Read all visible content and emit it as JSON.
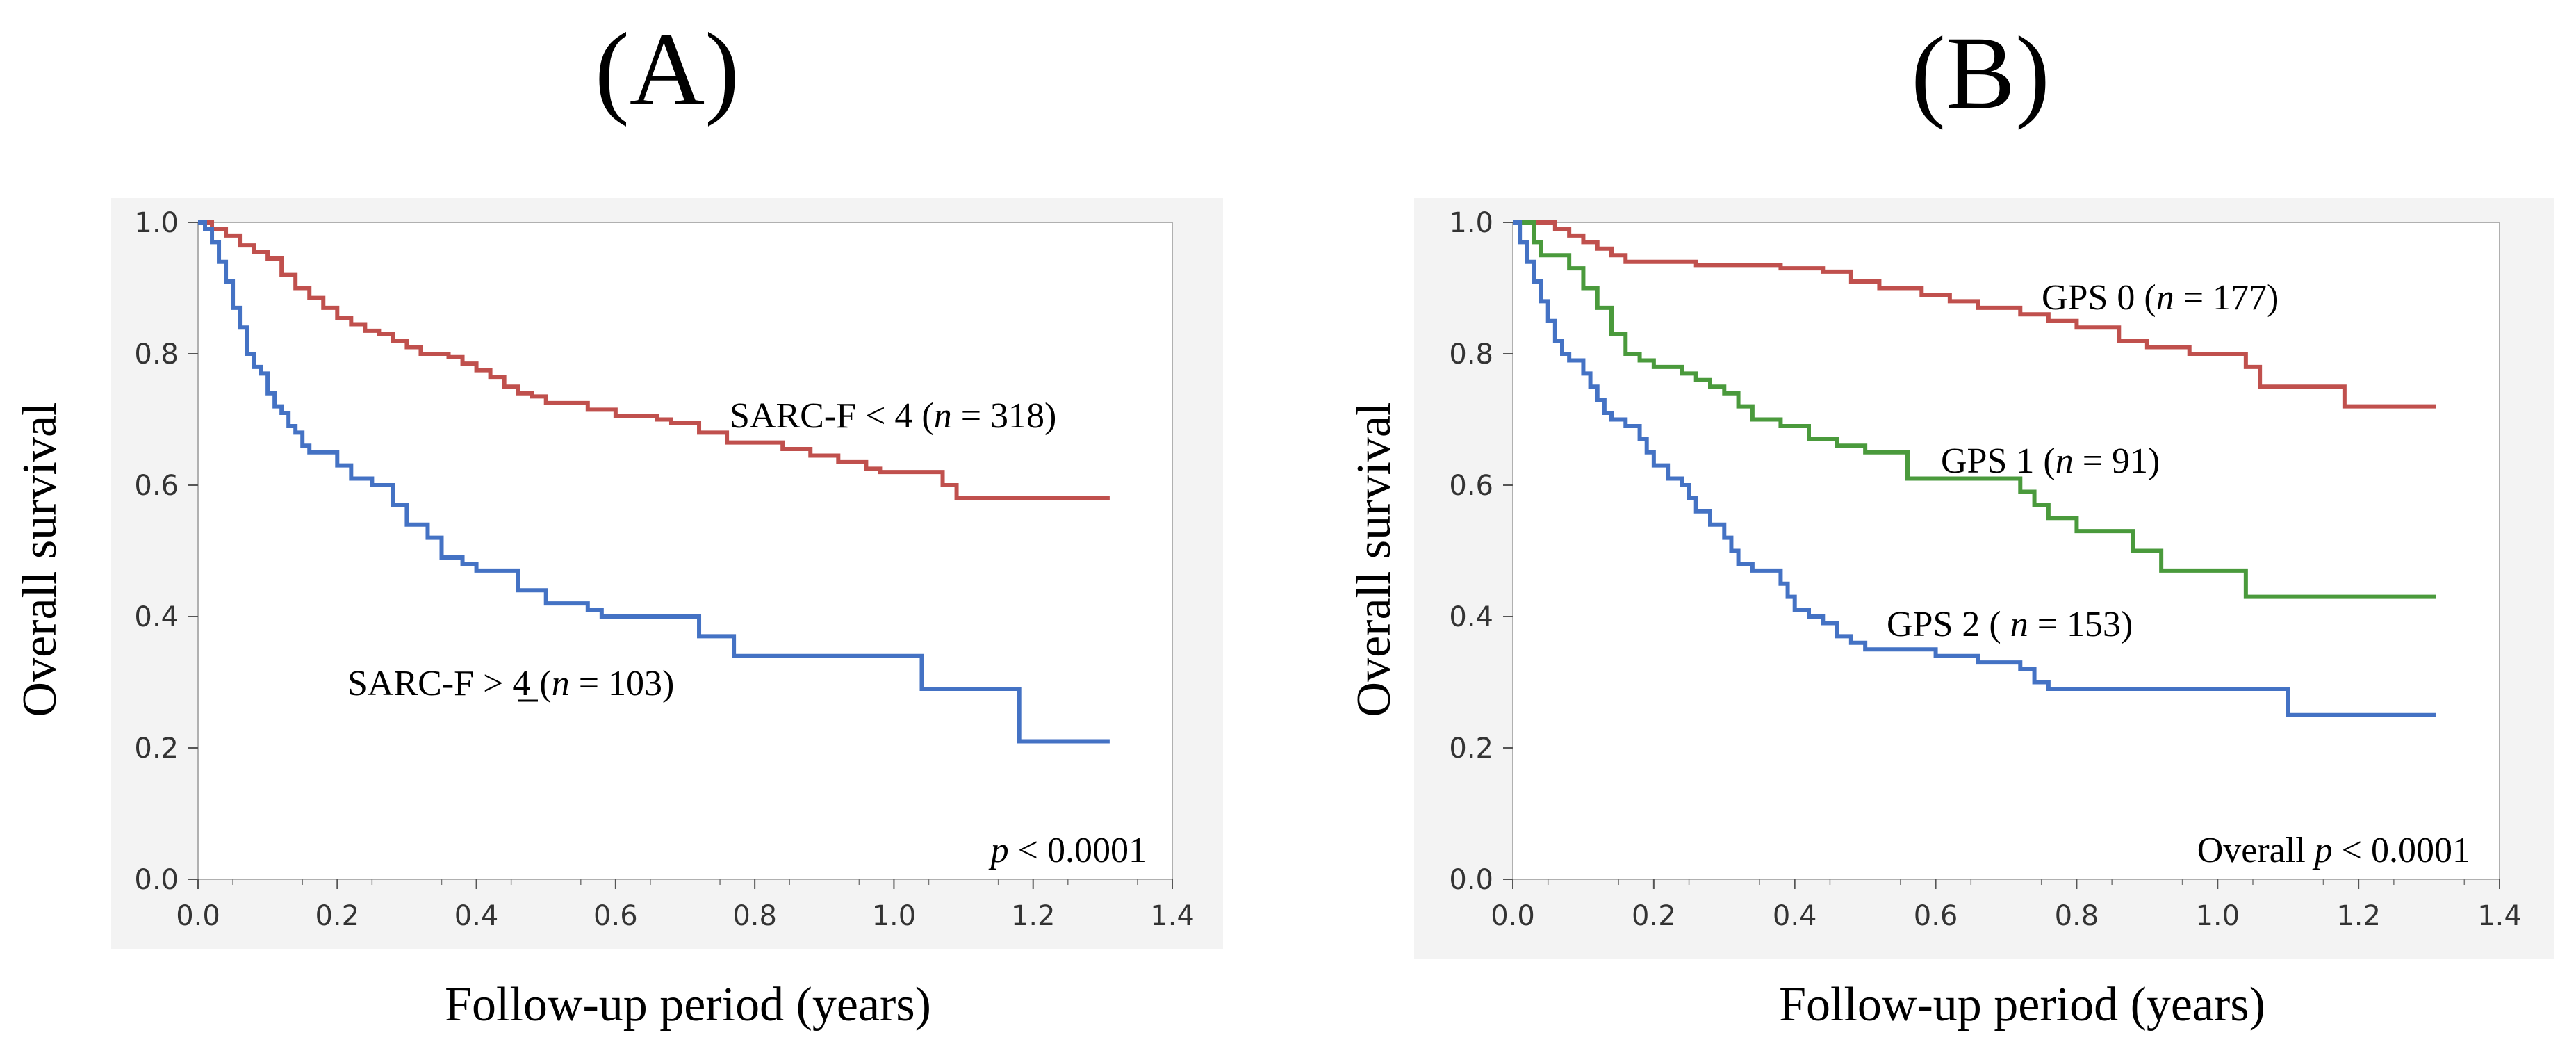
{
  "chart_data": [
    {
      "panel": "(A)",
      "type": "line",
      "step": true,
      "xlabel": "Follow-up period (years)",
      "ylabel": "Overall survival",
      "xlim": [
        0.0,
        1.4
      ],
      "ylim": [
        0.0,
        1.0
      ],
      "xticks": [
        "0.0",
        "0.2",
        "0.4",
        "0.6",
        "0.8",
        "1.0",
        "1.2",
        "1.4"
      ],
      "yticks": [
        "0.0",
        "0.2",
        "0.4",
        "0.6",
        "0.8",
        "1.0"
      ],
      "grid": false,
      "annotation": {
        "prefix": "",
        "p": "p",
        "value": " < 0.0001"
      },
      "series": [
        {
          "label_parts": [
            "SARC-F < 4  (",
            "n",
            " = 318)"
          ],
          "color": "#c0504d",
          "points": [
            [
              0,
              1.0
            ],
            [
              0.02,
              0.99
            ],
            [
              0.04,
              0.98
            ],
            [
              0.06,
              0.965
            ],
            [
              0.08,
              0.955
            ],
            [
              0.1,
              0.945
            ],
            [
              0.12,
              0.92
            ],
            [
              0.14,
              0.9
            ],
            [
              0.16,
              0.885
            ],
            [
              0.18,
              0.87
            ],
            [
              0.2,
              0.855
            ],
            [
              0.22,
              0.845
            ],
            [
              0.24,
              0.835
            ],
            [
              0.26,
              0.83
            ],
            [
              0.28,
              0.82
            ],
            [
              0.3,
              0.81
            ],
            [
              0.32,
              0.8
            ],
            [
              0.36,
              0.795
            ],
            [
              0.38,
              0.785
            ],
            [
              0.4,
              0.775
            ],
            [
              0.42,
              0.765
            ],
            [
              0.44,
              0.75
            ],
            [
              0.46,
              0.74
            ],
            [
              0.48,
              0.735
            ],
            [
              0.5,
              0.725
            ],
            [
              0.56,
              0.715
            ],
            [
              0.6,
              0.705
            ],
            [
              0.66,
              0.7
            ],
            [
              0.68,
              0.695
            ],
            [
              0.72,
              0.68
            ],
            [
              0.76,
              0.665
            ],
            [
              0.84,
              0.655
            ],
            [
              0.88,
              0.645
            ],
            [
              0.92,
              0.635
            ],
            [
              0.96,
              0.625
            ],
            [
              0.98,
              0.62
            ],
            [
              1.07,
              0.6
            ],
            [
              1.09,
              0.58
            ],
            [
              1.31,
              0.58
            ]
          ]
        },
        {
          "label_parts": [
            "SARC-F > 4 (",
            "n",
            " = 103)"
          ],
          "color": "#4472c4",
          "points": [
            [
              0,
              1.0
            ],
            [
              0.01,
              0.99
            ],
            [
              0.02,
              0.97
            ],
            [
              0.03,
              0.94
            ],
            [
              0.04,
              0.91
            ],
            [
              0.05,
              0.87
            ],
            [
              0.06,
              0.84
            ],
            [
              0.07,
              0.8
            ],
            [
              0.08,
              0.78
            ],
            [
              0.09,
              0.77
            ],
            [
              0.1,
              0.74
            ],
            [
              0.11,
              0.72
            ],
            [
              0.12,
              0.71
            ],
            [
              0.13,
              0.69
            ],
            [
              0.14,
              0.68
            ],
            [
              0.15,
              0.66
            ],
            [
              0.16,
              0.65
            ],
            [
              0.2,
              0.63
            ],
            [
              0.22,
              0.61
            ],
            [
              0.25,
              0.6
            ],
            [
              0.28,
              0.57
            ],
            [
              0.3,
              0.54
            ],
            [
              0.33,
              0.52
            ],
            [
              0.35,
              0.49
            ],
            [
              0.38,
              0.48
            ],
            [
              0.4,
              0.47
            ],
            [
              0.46,
              0.44
            ],
            [
              0.5,
              0.42
            ],
            [
              0.56,
              0.41
            ],
            [
              0.58,
              0.4
            ],
            [
              0.72,
              0.37
            ],
            [
              0.77,
              0.34
            ],
            [
              1.04,
              0.29
            ],
            [
              1.18,
              0.21
            ],
            [
              1.31,
              0.21
            ]
          ]
        }
      ]
    },
    {
      "panel": "(B)",
      "type": "line",
      "step": true,
      "xlabel": "Follow-up period (years)",
      "ylabel": "Overall survival",
      "xlim": [
        0.0,
        1.4
      ],
      "ylim": [
        0.0,
        1.0
      ],
      "xticks": [
        "0.0",
        "0.2",
        "0.4",
        "0.6",
        "0.8",
        "1.0",
        "1.2",
        "1.4"
      ],
      "yticks": [
        "0.0",
        "0.2",
        "0.4",
        "0.6",
        "0.8",
        "1.0"
      ],
      "grid": false,
      "annotation": {
        "prefix": "Overall  ",
        "p": "p",
        "value": " < 0.0001"
      },
      "series": [
        {
          "label_parts": [
            "GPS  0 (",
            "n",
            " = 177)"
          ],
          "color": "#c0504d",
          "points": [
            [
              0,
              1.0
            ],
            [
              0.06,
              0.99
            ],
            [
              0.08,
              0.98
            ],
            [
              0.1,
              0.97
            ],
            [
              0.12,
              0.96
            ],
            [
              0.14,
              0.95
            ],
            [
              0.16,
              0.94
            ],
            [
              0.26,
              0.935
            ],
            [
              0.38,
              0.93
            ],
            [
              0.44,
              0.925
            ],
            [
              0.48,
              0.91
            ],
            [
              0.52,
              0.9
            ],
            [
              0.58,
              0.89
            ],
            [
              0.62,
              0.88
            ],
            [
              0.66,
              0.87
            ],
            [
              0.72,
              0.86
            ],
            [
              0.76,
              0.85
            ],
            [
              0.8,
              0.84
            ],
            [
              0.86,
              0.82
            ],
            [
              0.9,
              0.81
            ],
            [
              0.96,
              0.8
            ],
            [
              1.04,
              0.78
            ],
            [
              1.06,
              0.75
            ],
            [
              1.18,
              0.72
            ],
            [
              1.31,
              0.72
            ]
          ]
        },
        {
          "label_parts": [
            "GPS 1  (",
            "n",
            " = 91)"
          ],
          "color": "#4a9a3c",
          "points": [
            [
              0,
              1.0
            ],
            [
              0.03,
              0.97
            ],
            [
              0.04,
              0.95
            ],
            [
              0.08,
              0.93
            ],
            [
              0.1,
              0.9
            ],
            [
              0.12,
              0.87
            ],
            [
              0.14,
              0.83
            ],
            [
              0.16,
              0.8
            ],
            [
              0.18,
              0.79
            ],
            [
              0.2,
              0.78
            ],
            [
              0.24,
              0.77
            ],
            [
              0.26,
              0.76
            ],
            [
              0.28,
              0.75
            ],
            [
              0.3,
              0.74
            ],
            [
              0.32,
              0.72
            ],
            [
              0.34,
              0.7
            ],
            [
              0.38,
              0.69
            ],
            [
              0.42,
              0.67
            ],
            [
              0.46,
              0.66
            ],
            [
              0.5,
              0.65
            ],
            [
              0.56,
              0.61
            ],
            [
              0.72,
              0.59
            ],
            [
              0.74,
              0.57
            ],
            [
              0.76,
              0.55
            ],
            [
              0.8,
              0.53
            ],
            [
              0.88,
              0.5
            ],
            [
              0.92,
              0.47
            ],
            [
              1.04,
              0.43
            ],
            [
              1.31,
              0.43
            ]
          ]
        },
        {
          "label_parts": [
            "GPS 2 (  ",
            "n",
            " = 153)"
          ],
          "color": "#4472c4",
          "points": [
            [
              0,
              1.0
            ],
            [
              0.01,
              0.97
            ],
            [
              0.02,
              0.94
            ],
            [
              0.03,
              0.91
            ],
            [
              0.04,
              0.88
            ],
            [
              0.05,
              0.85
            ],
            [
              0.06,
              0.82
            ],
            [
              0.07,
              0.8
            ],
            [
              0.08,
              0.79
            ],
            [
              0.1,
              0.77
            ],
            [
              0.11,
              0.75
            ],
            [
              0.12,
              0.73
            ],
            [
              0.13,
              0.71
            ],
            [
              0.14,
              0.7
            ],
            [
              0.16,
              0.69
            ],
            [
              0.18,
              0.67
            ],
            [
              0.19,
              0.65
            ],
            [
              0.2,
              0.63
            ],
            [
              0.22,
              0.61
            ],
            [
              0.24,
              0.6
            ],
            [
              0.25,
              0.58
            ],
            [
              0.26,
              0.56
            ],
            [
              0.28,
              0.54
            ],
            [
              0.3,
              0.52
            ],
            [
              0.31,
              0.5
            ],
            [
              0.32,
              0.48
            ],
            [
              0.34,
              0.47
            ],
            [
              0.38,
              0.45
            ],
            [
              0.39,
              0.43
            ],
            [
              0.4,
              0.41
            ],
            [
              0.42,
              0.4
            ],
            [
              0.44,
              0.39
            ],
            [
              0.46,
              0.37
            ],
            [
              0.48,
              0.36
            ],
            [
              0.5,
              0.35
            ],
            [
              0.6,
              0.34
            ],
            [
              0.66,
              0.33
            ],
            [
              0.72,
              0.32
            ],
            [
              0.74,
              0.3
            ],
            [
              0.76,
              0.29
            ],
            [
              1.1,
              0.25
            ],
            [
              1.31,
              0.25
            ]
          ]
        }
      ]
    }
  ]
}
